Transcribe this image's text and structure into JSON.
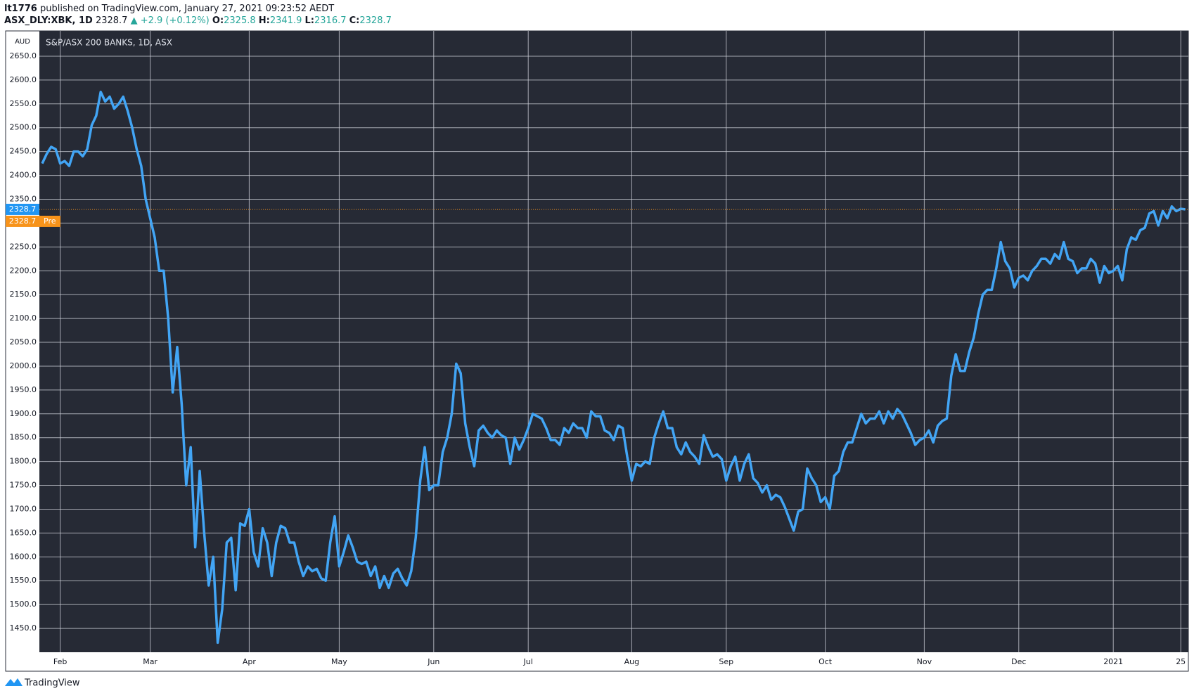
{
  "header": {
    "user": "lt1776",
    "published": "published on TradingView.com, January 27, 2021 09:23:52 AEDT",
    "symbol": "ASX_DLY:XBK, 1D",
    "price": "2328.7",
    "change": "▲ +2.9 (+0.12%)",
    "o_label": "O:",
    "open": "2325.8",
    "h_label": "H:",
    "high": "2341.9",
    "l_label": "L:",
    "low": "2316.7",
    "c_label": "C:",
    "close": "2328.7"
  },
  "footer": {
    "brand": "TradingView"
  },
  "chart_data": {
    "type": "line",
    "title": "S&P/ASX 200 BANKS, 1D, ASX",
    "ylabel": "AUD",
    "categories": [
      null,
      null,
      null,
      null,
      "Feb",
      null,
      null,
      null,
      null,
      null,
      null,
      null,
      null,
      null,
      null,
      null,
      null,
      null,
      null,
      null,
      null,
      null,
      null,
      null,
      "Mar",
      null,
      null,
      null,
      null,
      null,
      null,
      null,
      null,
      null,
      null,
      null,
      null,
      null,
      null,
      null,
      null,
      null,
      null,
      null,
      null,
      null,
      "Apr",
      null,
      null,
      null,
      null,
      null,
      null,
      null,
      null,
      null,
      null,
      null,
      null,
      null,
      null,
      null,
      null,
      null,
      null,
      null,
      "May",
      null,
      null,
      null,
      null,
      null,
      null,
      null,
      null,
      null,
      null,
      null,
      null,
      null,
      null,
      null,
      null,
      null,
      null,
      null,
      null,
      "Jun",
      null,
      null,
      null,
      null,
      null,
      null,
      null,
      null,
      null,
      null,
      null,
      null,
      null,
      null,
      null,
      null,
      null,
      null,
      null,
      null,
      "Jul",
      null,
      null,
      null,
      null,
      null,
      null,
      null,
      null,
      null,
      null,
      null,
      null,
      null,
      null,
      null,
      null,
      null,
      null,
      null,
      null,
      null,
      null,
      "Aug",
      null,
      null,
      null,
      null,
      null,
      null,
      null,
      null,
      null,
      null,
      null,
      null,
      null,
      null,
      null,
      null,
      null,
      null,
      null,
      null,
      "Sep",
      null,
      null,
      null,
      null,
      null,
      null,
      null,
      null,
      null,
      null,
      null,
      null,
      null,
      null,
      null,
      null,
      null,
      null,
      null,
      null,
      null,
      "Oct",
      null,
      null,
      null,
      null,
      null,
      null,
      null,
      null,
      null,
      null,
      null,
      null,
      null,
      null,
      null,
      null,
      null,
      null,
      null,
      null,
      null,
      "Nov",
      null,
      null,
      null,
      null,
      null,
      null,
      null,
      null,
      null,
      null,
      null,
      null,
      null,
      null,
      null,
      null,
      null,
      null,
      null,
      null,
      "Dec",
      null,
      null,
      null,
      null,
      null,
      null,
      null,
      null,
      null,
      null,
      null,
      null,
      null,
      null,
      null,
      null,
      null,
      null,
      null,
      null,
      "2021",
      null,
      null,
      null,
      null,
      null,
      null,
      null,
      null,
      null,
      null,
      null,
      null,
      null,
      null,
      "25",
      null
    ],
    "series": [
      {
        "color": "#42a5f5",
        "values": [
          2425,
          2445,
          2460,
          2455,
          2425,
          2430,
          2420,
          2450,
          2450,
          2440,
          2455,
          2505,
          2525,
          2575,
          2555,
          2565,
          2540,
          2550,
          2565,
          2535,
          2500,
          2455,
          2420,
          2350,
          2310,
          2270,
          2200,
          2200,
          2100,
          1945,
          2040,
          1920,
          1750,
          1830,
          1620,
          1780,
          1650,
          1540,
          1600,
          1420,
          1490,
          1630,
          1640,
          1530,
          1670,
          1665,
          1700,
          1610,
          1580,
          1660,
          1630,
          1560,
          1630,
          1665,
          1660,
          1630,
          1630,
          1590,
          1560,
          1580,
          1570,
          1575,
          1555,
          1550,
          1630,
          1685,
          1580,
          1610,
          1645,
          1620,
          1590,
          1585,
          1590,
          1560,
          1580,
          1535,
          1560,
          1535,
          1565,
          1575,
          1555,
          1540,
          1570,
          1640,
          1760,
          1830,
          1740,
          1750,
          1750,
          1820,
          1850,
          1900,
          2005,
          1985,
          1880,
          1830,
          1790,
          1865,
          1875,
          1860,
          1850,
          1865,
          1855,
          1850,
          1795,
          1850,
          1825,
          1845,
          1870,
          1900,
          1895,
          1890,
          1870,
          1845,
          1845,
          1835,
          1870,
          1860,
          1880,
          1870,
          1870,
          1850,
          1905,
          1895,
          1895,
          1865,
          1860,
          1845,
          1875,
          1870,
          1810,
          1760,
          1795,
          1790,
          1800,
          1795,
          1850,
          1880,
          1905,
          1870,
          1870,
          1830,
          1815,
          1840,
          1820,
          1810,
          1795,
          1855,
          1830,
          1810,
          1815,
          1805,
          1760,
          1790,
          1810,
          1760,
          1795,
          1815,
          1765,
          1755,
          1735,
          1750,
          1720,
          1730,
          1725,
          1705,
          1680,
          1655,
          1695,
          1700,
          1785,
          1765,
          1750,
          1715,
          1725,
          1700,
          1770,
          1780,
          1820,
          1840,
          1840,
          1870,
          1900,
          1880,
          1890,
          1890,
          1905,
          1880,
          1905,
          1890,
          1910,
          1900,
          1880,
          1860,
          1835,
          1845,
          1850,
          1865,
          1840,
          1875,
          1885,
          1890,
          1980,
          2025,
          1990,
          1990,
          2030,
          2060,
          2110,
          2150,
          2160,
          2160,
          2205,
          2260,
          2220,
          2205,
          2165,
          2185,
          2190,
          2180,
          2200,
          2210,
          2225,
          2225,
          2215,
          2235,
          2225,
          2260,
          2225,
          2220,
          2195,
          2205,
          2205,
          2225,
          2215,
          2175,
          2210,
          2195,
          2200,
          2210,
          2180,
          2245,
          2270,
          2265,
          2285,
          2290,
          2320,
          2325,
          2295,
          2325,
          2310,
          2335,
          2325,
          2330,
          2328.7
        ]
      }
    ],
    "ylim": [
      1400,
      2703
    ],
    "yticks": [
      {
        "value": 1450,
        "label": "1450.0"
      },
      {
        "value": 1500,
        "label": "1500.0"
      },
      {
        "value": 1550,
        "label": "1550.0"
      },
      {
        "value": 1600,
        "label": "1600.0"
      },
      {
        "value": 1650,
        "label": "1650.0"
      },
      {
        "value": 1700,
        "label": "1700.0"
      },
      {
        "value": 1750,
        "label": "1750.0"
      },
      {
        "value": 1800,
        "label": "1800.0"
      },
      {
        "value": 1850,
        "label": "1850.0"
      },
      {
        "value": 1900,
        "label": "1900.0"
      },
      {
        "value": 1950,
        "label": "1950.0"
      },
      {
        "value": 2000,
        "label": "2000.0"
      },
      {
        "value": 2050,
        "label": "2050.0"
      },
      {
        "value": 2100,
        "label": "2100.0"
      },
      {
        "value": 2150,
        "label": "2150.0"
      },
      {
        "value": 2200,
        "label": "2200.0"
      },
      {
        "value": 2250,
        "label": "2250.0"
      },
      {
        "value": 2300,
        "label": "2300.0"
      },
      {
        "value": 2350,
        "label": "2350.0"
      },
      {
        "value": 2400,
        "label": "2400.0"
      },
      {
        "value": 2450,
        "label": "2450.0"
      },
      {
        "value": 2500,
        "label": "2500.0"
      },
      {
        "value": 2550,
        "label": "2550.0"
      },
      {
        "value": 2600,
        "label": "2600.0"
      },
      {
        "value": 2650,
        "label": "2650.0"
      }
    ],
    "grid": true,
    "last_price": {
      "value": 2328.7,
      "label": "2328.7",
      "color": "#2196f3"
    },
    "pre_price": {
      "value": 2328.7,
      "label": "2328.7",
      "tag": "Pre",
      "color": "#f7931a"
    }
  }
}
